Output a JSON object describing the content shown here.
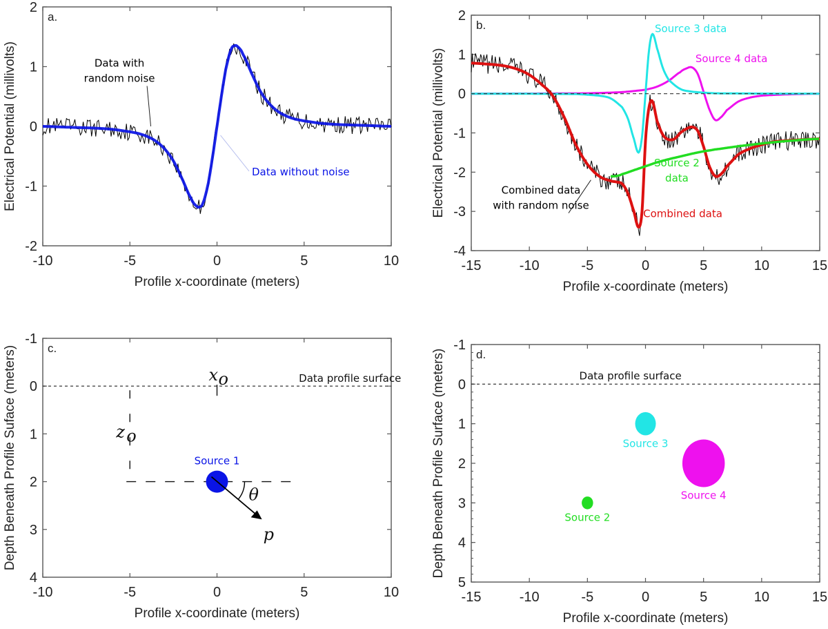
{
  "colors": {
    "axis": "#555555",
    "noise": "#000000",
    "source1": "#0a14e6",
    "source2": "#22dd22",
    "source3": "#22e5e5",
    "source4": "#ee11ee",
    "combined": "#dd1111",
    "zero_line": "#333333"
  },
  "chart_data": [
    {
      "id": "a",
      "type": "line",
      "panel_label": "a.",
      "xlabel": "Profile x-coordinate (meters)",
      "ylabel": "Electrical Potential (millivolts)",
      "xlim": [
        -10,
        10
      ],
      "ylim": [
        -2,
        2
      ],
      "x_ticks": [
        -10,
        -5,
        0,
        5,
        10
      ],
      "y_ticks": [
        2,
        1,
        0,
        -1,
        -2
      ],
      "x_tick_labels": [
        "-10",
        "-5",
        "0",
        "5",
        "10"
      ],
      "y_tick_labels": [
        "2",
        "1",
        "0",
        "-1",
        "-2"
      ],
      "grid": false,
      "series": [
        {
          "name": "Data without noise",
          "color_key": "source1",
          "x": [
            -10,
            -9,
            -8,
            -7,
            -6,
            -5,
            -4.5,
            -4,
            -3.5,
            -3,
            -2.5,
            -2,
            -1.5,
            -1.2,
            -1,
            -0.8,
            -0.5,
            -0.25,
            0,
            0.25,
            0.5,
            0.8,
            1,
            1.2,
            1.5,
            2,
            2.5,
            3,
            3.5,
            4,
            4.5,
            5,
            6,
            7,
            8,
            9,
            10
          ],
          "y": [
            0,
            -0.01,
            -0.02,
            -0.03,
            -0.05,
            -0.09,
            -0.12,
            -0.17,
            -0.25,
            -0.38,
            -0.58,
            -0.88,
            -1.2,
            -1.33,
            -1.35,
            -1.28,
            -0.95,
            -0.5,
            0,
            0.5,
            0.95,
            1.28,
            1.35,
            1.33,
            1.2,
            0.88,
            0.58,
            0.38,
            0.25,
            0.17,
            0.12,
            0.09,
            0.05,
            0.03,
            0.02,
            0.01,
            0
          ]
        },
        {
          "name": "Data with random noise",
          "color_key": "noise",
          "noise_amplitude": 0.15,
          "base_series": 0
        }
      ],
      "annotations": [
        {
          "text_lines": [
            "Data with",
            "random noise"
          ],
          "color_key": "noise",
          "anchor_data": [
            -5.6,
            1.0
          ],
          "pointer_to": [
            -3.8,
            0.0
          ]
        },
        {
          "text_lines": [
            "Data without noise"
          ],
          "color_key": "source1",
          "anchor_data": [
            2.0,
            -0.82
          ],
          "pointer_to": [
            0.2,
            -0.15
          ]
        }
      ]
    },
    {
      "id": "b",
      "type": "line",
      "panel_label": "b.",
      "xlabel": "Profile x-coordinate (meters)",
      "ylabel": "Electrical Potential (millivolts)",
      "xlim": [
        -15,
        15
      ],
      "ylim": [
        -4,
        2
      ],
      "x_ticks": [
        -15,
        -10,
        -5,
        0,
        5,
        10,
        15
      ],
      "y_ticks": [
        2,
        1,
        0,
        -1,
        -2,
        -3,
        -4
      ],
      "x_tick_labels": [
        "-15",
        "-10",
        "-5",
        "0",
        "5",
        "10",
        "15"
      ],
      "y_tick_labels": [
        "2",
        "1",
        "0",
        "-1",
        "-2",
        "-3",
        "-4"
      ],
      "grid": false,
      "zero_line": true,
      "series": [
        {
          "name": "Source 2 data",
          "color_key": "source2",
          "x": [
            -15,
            -12,
            -10,
            -8,
            -6,
            -5,
            -4,
            -3.5,
            -3,
            -2.5,
            -2,
            -1,
            0,
            1,
            2,
            3,
            4,
            5,
            6,
            8,
            10,
            12,
            15
          ],
          "y": [
            0.78,
            0.72,
            0.55,
            0.05,
            -1.1,
            -1.6,
            -1.95,
            -2.05,
            -2.1,
            -2.1,
            -2.05,
            -1.95,
            -1.85,
            -1.75,
            -1.67,
            -1.6,
            -1.53,
            -1.47,
            -1.42,
            -1.34,
            -1.27,
            -1.21,
            -1.15
          ]
        },
        {
          "name": "Source 3 data",
          "color_key": "source3",
          "x": [
            -15,
            -6,
            -4,
            -3,
            -2,
            -1.5,
            -1,
            -0.6,
            -0.3,
            0,
            0.3,
            0.6,
            1,
            1.5,
            2,
            3,
            4,
            6,
            15
          ],
          "y": [
            0,
            -0.01,
            -0.05,
            -0.12,
            -0.35,
            -0.65,
            -1.15,
            -1.5,
            -1.1,
            0,
            1.1,
            1.52,
            1.15,
            0.65,
            0.35,
            0.12,
            0.05,
            0.01,
            0
          ]
        },
        {
          "name": "Source 4 data",
          "color_key": "source4",
          "x": [
            -15,
            -5,
            -2,
            0,
            1,
            2,
            3,
            3.5,
            4,
            4.5,
            5,
            5.5,
            6,
            6.5,
            7,
            8,
            9,
            10,
            12,
            15
          ],
          "y": [
            0,
            0.01,
            0.04,
            0.1,
            0.18,
            0.33,
            0.55,
            0.64,
            0.67,
            0.5,
            0.05,
            -0.4,
            -0.67,
            -0.6,
            -0.42,
            -0.2,
            -0.1,
            -0.05,
            -0.02,
            0
          ]
        },
        {
          "name": "Combined data",
          "color_key": "combined",
          "x": [
            -15,
            -13,
            -12,
            -11,
            -10,
            -9,
            -8,
            -7,
            -6,
            -5,
            -4,
            -3,
            -2.5,
            -2,
            -1.5,
            -1,
            -0.6,
            -0.3,
            0,
            0.3,
            0.6,
            1,
            1.5,
            2,
            2.5,
            3,
            3.5,
            4,
            4.5,
            5,
            5.5,
            6,
            6.5,
            7,
            8,
            9,
            10,
            11,
            12,
            13,
            15
          ],
          "y": [
            0.78,
            0.74,
            0.7,
            0.62,
            0.48,
            0.25,
            -0.05,
            -0.6,
            -1.3,
            -1.8,
            -2.1,
            -2.22,
            -2.25,
            -2.3,
            -2.55,
            -3.0,
            -3.4,
            -3.0,
            -1.2,
            -0.35,
            -0.2,
            -0.7,
            -1.05,
            -1.17,
            -1.15,
            -1.0,
            -0.9,
            -0.85,
            -0.95,
            -1.35,
            -1.85,
            -2.1,
            -2.05,
            -1.85,
            -1.55,
            -1.4,
            -1.3,
            -1.23,
            -1.2,
            -1.18,
            -1.15
          ]
        },
        {
          "name": "Combined data with random noise",
          "color_key": "noise",
          "noise_amplitude": 0.25,
          "base_series": 3
        }
      ],
      "annotations": [
        {
          "text_lines": [
            "Source 3 data"
          ],
          "color_key": "source3",
          "anchor_data": [
            0.8,
            1.57
          ]
        },
        {
          "text_lines": [
            "Source 4 data"
          ],
          "color_key": "source4",
          "anchor_data": [
            4.3,
            0.8
          ]
        },
        {
          "text_lines": [
            "Source 2",
            "data"
          ],
          "color_key": "source2",
          "anchor_data": [
            2.7,
            -1.85
          ]
        },
        {
          "text_lines": [
            "Combined data",
            "with random noise"
          ],
          "color_key": "noise",
          "anchor_data": [
            -9.0,
            -2.55
          ],
          "pointer_to": [
            -4.7,
            -2.2
          ]
        },
        {
          "text_lines": [
            "Combined data"
          ],
          "color_key": "combined",
          "anchor_data": [
            -0.2,
            -3.15
          ]
        }
      ]
    },
    {
      "id": "c",
      "type": "scatter",
      "panel_label": "c.",
      "xlabel": "Profile x-coordinate (meters)",
      "ylabel": "Depth Beneath Profile Suface (meters)",
      "xlim": [
        -10,
        10
      ],
      "ylim": [
        -1,
        4
      ],
      "y_inverted": true,
      "x_ticks": [
        -10,
        -5,
        0,
        5,
        10
      ],
      "y_ticks": [
        -1,
        0,
        1,
        2,
        3,
        4
      ],
      "x_tick_labels": [
        "-10",
        "-5",
        "0",
        "5",
        "10"
      ],
      "y_tick_labels": [
        "-1",
        "0",
        "1",
        "2",
        "3",
        "4"
      ],
      "grid": false,
      "surface_label": "Data profile surface",
      "points": [
        {
          "name": "Source 1",
          "x": 0,
          "depth": 2,
          "color_key": "source1",
          "relative_size": 1.0
        }
      ],
      "symbols": {
        "x0": "x",
        "x0_sub": "o",
        "z0": "z",
        "z0_sub": "o",
        "theta": "θ",
        "moment": "p"
      },
      "dipole_angle_deg": 40
    },
    {
      "id": "d",
      "type": "scatter",
      "panel_label": "d.",
      "xlabel": "Profile x-coordinate (meters)",
      "ylabel": "Depth Beneath Profile Surface (meters)",
      "xlim": [
        -15,
        15
      ],
      "ylim": [
        -1,
        5
      ],
      "y_inverted": true,
      "x_ticks": [
        -15,
        -10,
        -5,
        0,
        5,
        10,
        15
      ],
      "y_ticks": [
        -1,
        0,
        1,
        2,
        3,
        4,
        5
      ],
      "x_tick_labels": [
        "-15",
        "-10",
        "-5",
        "0",
        "5",
        "10",
        "15"
      ],
      "y_tick_labels": [
        "-1",
        "0",
        "1",
        "2",
        "3",
        "4",
        "5"
      ],
      "grid": false,
      "surface_label": "Data profile surface",
      "points": [
        {
          "name": "Source 2",
          "x": -5,
          "depth": 3,
          "color_key": "source2",
          "relative_size": 0.55
        },
        {
          "name": "Source 3",
          "x": 0,
          "depth": 1,
          "color_key": "source3",
          "relative_size": 1.0
        },
        {
          "name": "Source 4",
          "x": 5,
          "depth": 2,
          "color_key": "source4",
          "relative_size": 2.05
        }
      ]
    }
  ]
}
